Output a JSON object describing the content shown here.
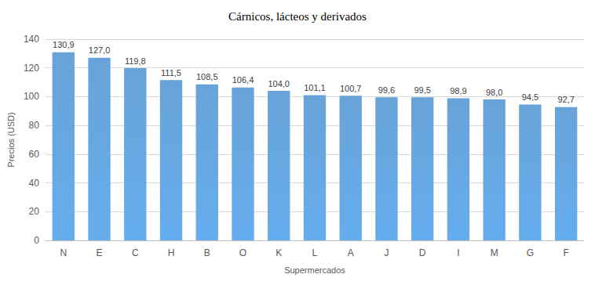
{
  "chart_data": {
    "type": "bar",
    "title": "Cárnicos, lácteos y derivados",
    "x_label": "Supermercados",
    "y_label": "Precios (USD)",
    "categories": [
      "N",
      "E",
      "C",
      "H",
      "B",
      "O",
      "K",
      "L",
      "A",
      "J",
      "D",
      "I",
      "M",
      "G",
      "F"
    ],
    "values": [
      130.9,
      127.0,
      119.8,
      111.5,
      108.5,
      106.4,
      104.0,
      101.1,
      100.7,
      99.6,
      99.5,
      98.9,
      98.0,
      94.5,
      92.7
    ],
    "value_labels": [
      "130,9",
      "127,0",
      "119,8",
      "111,5",
      "108,5",
      "106,4",
      "104,0",
      "101,1",
      "100,7",
      "99,6",
      "99,5",
      "98,9",
      "98,0",
      "94,5",
      "92,7"
    ],
    "color": "#5b9bd5",
    "ylim": [
      0,
      140
    ],
    "yticks": [
      0,
      20,
      40,
      60,
      80,
      100,
      120,
      140
    ],
    "grid": true,
    "data_labels": true
  }
}
